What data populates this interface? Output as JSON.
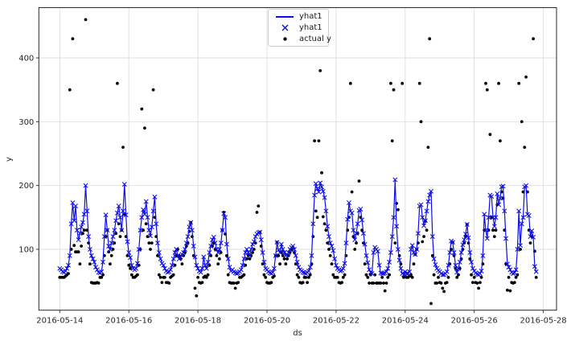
{
  "chart_data": {
    "type": "line",
    "title": "",
    "xlabel": "ds",
    "ylabel": "y",
    "x_start": "2016-05-14 00:00",
    "x_step_hours": 1,
    "x_tick_labels": [
      "2016-05-14",
      "2016-05-16",
      "2016-05-18",
      "2016-05-20",
      "2016-05-22",
      "2016-05-24",
      "2016-05-26",
      "2016-05-28"
    ],
    "y_ticks": [
      100,
      200,
      300,
      400
    ],
    "ylim": [
      5,
      478
    ],
    "grid": true,
    "legend_position": "upper center",
    "legend": [
      {
        "label": "yhat1",
        "marker": "line",
        "color": "#0b0bee"
      },
      {
        "label": "yhat1",
        "marker": "x",
        "color": "#0b0bee"
      },
      {
        "label": "actual y",
        "marker": "dot",
        "color": "#000000"
      }
    ],
    "series": [
      {
        "name": "yhat1",
        "style": "line+x-marker",
        "color": "#0b0bee",
        "values": [
          70,
          68,
          65,
          64,
          66,
          70,
          75,
          90,
          140,
          173,
          145,
          168,
          130,
          115,
          125,
          135,
          142,
          155,
          200,
          160,
          120,
          100,
          90,
          85,
          80,
          72,
          68,
          64,
          63,
          65,
          80,
          120,
          154,
          130,
          105,
          100,
          110,
          120,
          130,
          145,
          157,
          168,
          150,
          130,
          160,
          202,
          154,
          112,
          95,
          87,
          75,
          70,
          68,
          70,
          78,
          100,
          130,
          150,
          162,
          155,
          175,
          150,
          130,
          121,
          135,
          160,
          182,
          140,
          110,
          95,
          85,
          78,
          75,
          70,
          66,
          64,
          65,
          68,
          75,
          85,
          95,
          100,
          90,
          85,
          88,
          92,
          95,
          100,
          110,
          120,
          135,
          142,
          130,
          105,
          88,
          75,
          70,
          66,
          64,
          70,
          88,
          75,
          70,
          80,
          95,
          105,
          115,
          119,
          110,
          100,
          95,
          100,
          110,
          130,
          156,
          150,
          108,
          85,
          72,
          66,
          68,
          65,
          63,
          62,
          63,
          65,
          68,
          75,
          85,
          95,
          100,
          95,
          90,
          100,
          108,
          112,
          120,
          124,
          126,
          127,
          115,
          95,
          80,
          70,
          68,
          65,
          63,
          62,
          64,
          70,
          90,
          111,
          99,
          95,
          108,
          100,
          95,
          90,
          92,
          95,
          100,
          103,
          105,
          100,
          90,
          80,
          72,
          68,
          66,
          64,
          63,
          62,
          64,
          66,
          72,
          90,
          140,
          185,
          203,
          195,
          190,
          204,
          198,
          191,
          181,
          160,
          136,
          120,
          110,
          105,
          98,
          85,
          75,
          70,
          68,
          66,
          67,
          70,
          78,
          110,
          147,
          173,
          160,
          157,
          130,
          115,
          125,
          140,
          161,
          163,
          146,
          125,
          108,
          90,
          79,
          68,
          64,
          62,
          95,
          103,
          100,
          97,
          75,
          63,
          62,
          62,
          63,
          65,
          70,
          80,
          95,
          120,
          150,
          209,
          136,
          100,
          83,
          70,
          62,
          60,
          65,
          62,
          62,
          65,
          100,
          106,
          95,
          92,
          100,
          125,
          168,
          170,
          150,
          137,
          145,
          160,
          175,
          185,
          191,
          120,
          85,
          76,
          70,
          67,
          65,
          62,
          60,
          60,
          62,
          65,
          75,
          95,
          113,
          111,
          95,
          75,
          64,
          70,
          80,
          95,
          107,
          115,
          124,
          139,
          118,
          95,
          80,
          70,
          66,
          63,
          61,
          60,
          62,
          66,
          90,
          155,
          130,
          117,
          150,
          185,
          183,
          150,
          136,
          150,
          187,
          170,
          180,
          198,
          199,
          160,
          117,
          77,
          72,
          68,
          64,
          62,
          63,
          68,
          100,
          160,
          106,
          140,
          150,
          198,
          200,
          155,
          153,
          120,
          129,
          119,
          73,
          65
        ]
      },
      {
        "name": "actual y",
        "style": "scatter",
        "color": "#000000",
        "values": [
          56,
          56,
          56,
          56,
          58,
          60,
          62,
          350,
          100,
          430,
          106,
          96,
          96,
          96,
          77,
          105,
          125,
          130,
          460,
          130,
          110,
          77,
          48,
          47,
          47,
          47,
          48,
          47,
          56,
          56,
          60,
          90,
          120,
          130,
          96,
          77,
          90,
          100,
          110,
          125,
          360,
          140,
          120,
          130,
          260,
          155,
          120,
          90,
          75,
          70,
          60,
          56,
          56,
          58,
          60,
          75,
          100,
          320,
          130,
          290,
          140,
          120,
          110,
          100,
          110,
          350,
          150,
          120,
          90,
          60,
          56,
          48,
          56,
          56,
          48,
          48,
          47,
          56,
          58,
          60,
          75,
          90,
          100,
          90,
          85,
          77,
          90,
          95,
          105,
          110,
          128,
          142,
          120,
          90,
          39,
          27,
          56,
          48,
          47,
          48,
          56,
          58,
          56,
          60,
          75,
          90,
          105,
          110,
          100,
          90,
          77,
          85,
          95,
          130,
          158,
          124,
          90,
          60,
          48,
          47,
          47,
          47,
          39,
          47,
          48,
          56,
          56,
          58,
          60,
          75,
          85,
          90,
          85,
          90,
          95,
          100,
          110,
          158,
          168,
          127,
          105,
          77,
          60,
          56,
          48,
          47,
          47,
          48,
          56,
          58,
          90,
          111,
          90,
          77,
          95,
          90,
          85,
          77,
          85,
          90,
          95,
          100,
          103,
          95,
          77,
          60,
          56,
          48,
          47,
          48,
          56,
          56,
          48,
          56,
          60,
          77,
          120,
          270,
          160,
          150,
          270,
          380,
          220,
          151,
          140,
          130,
          110,
          100,
          90,
          77,
          60,
          56,
          56,
          56,
          48,
          47,
          48,
          56,
          60,
          90,
          130,
          150,
          360,
          190,
          120,
          100,
          110,
          125,
          207,
          150,
          130,
          110,
          77,
          60,
          56,
          47,
          60,
          47,
          47,
          60,
          47,
          47,
          47,
          47,
          56,
          47,
          35,
          47,
          56,
          60,
          360,
          270,
          350,
          110,
          172,
          162,
          90,
          77,
          360,
          56,
          58,
          56,
          56,
          58,
          60,
          56,
          77,
          92,
          100,
          110,
          360,
          300,
          112,
          120,
          144,
          130,
          260,
          430,
          15,
          90,
          60,
          47,
          47,
          56,
          48,
          47,
          39,
          34,
          47,
          48,
          56,
          77,
          100,
          111,
          90,
          70,
          56,
          60,
          70,
          85,
          100,
          110,
          120,
          139,
          110,
          85,
          60,
          48,
          56,
          48,
          47,
          39,
          48,
          56,
          77,
          130,
          360,
          350,
          130,
          280,
          150,
          130,
          120,
          130,
          170,
          360,
          270,
          190,
          180,
          130,
          77,
          36,
          56,
          35,
          48,
          47,
          48,
          56,
          60,
          360,
          100,
          300,
          190,
          260,
          370,
          190,
          130,
          110,
          120,
          430,
          97,
          56
        ]
      }
    ]
  },
  "colors": {
    "line": "#0b0bee",
    "actual": "#000000",
    "grid": "#dedede",
    "spine": "#2a2a2a",
    "tick_text": "#262626"
  }
}
